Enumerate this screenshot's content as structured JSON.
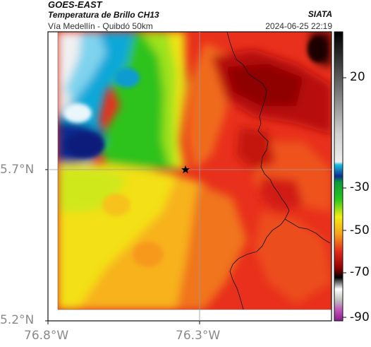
{
  "header": {
    "source": "GOES-EAST",
    "product": "Temperatura de Brillo CH13",
    "route": "Vía Medellín - Quibdó 50km",
    "agency": "SIATA",
    "datetime": "2024-06-25 22:19"
  },
  "axes": {
    "lat_ticks": [
      "5.7°N",
      "5.2°N"
    ],
    "lon_ticks": [
      "76.8°W",
      "76.3°W"
    ],
    "gridlines": true
  },
  "colorbar": {
    "tick_labels": [
      "20",
      "-30",
      "-50",
      "-70",
      "-90"
    ],
    "ticks": [
      20,
      -30,
      -50,
      -70,
      -90
    ],
    "range": [
      -95,
      40
    ],
    "scale_colors": {
      "warm_top": "#111111",
      "gray": "#bfbfbf",
      "cyan": "#16b7d8",
      "blue": "#0a2a8c",
      "green": "#1fae2a",
      "yellow": "#f5ee10",
      "orange": "#f6a11b",
      "red": "#e2291c",
      "dark_red": "#6a0000",
      "black": "#000000",
      "white": "#f2f2f2",
      "magenta": "#a6229a"
    }
  },
  "map": {
    "marker_icon": "star-icon",
    "border_color": "#1a1a1a"
  }
}
